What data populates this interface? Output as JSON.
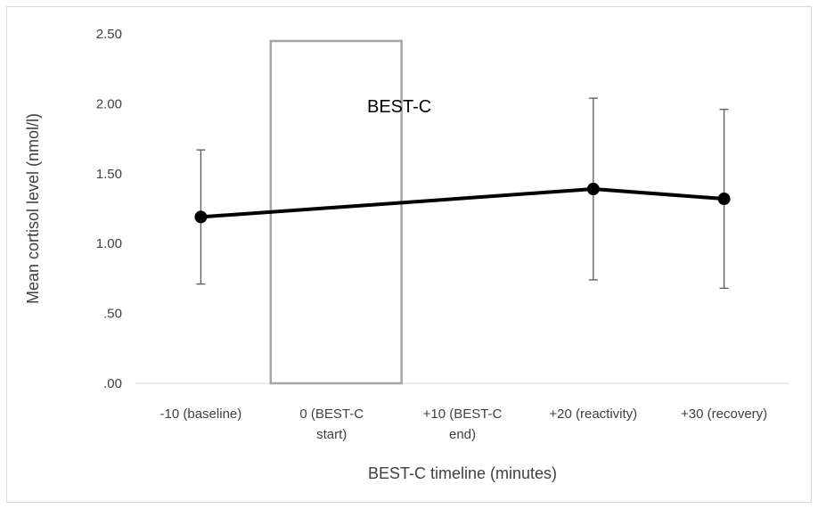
{
  "chart_data": {
    "type": "line",
    "title": "",
    "xlabel": "BEST-C timeline (minutes)",
    "ylabel": "Mean cortisol level (nmol/l)",
    "ylim": [
      0,
      2.5
    ],
    "yticks": [
      ".00",
      ".50",
      "1.00",
      "1.50",
      "2.00",
      "2.50"
    ],
    "categories": [
      [
        "-10 (baseline)"
      ],
      [
        "0 (BEST-C",
        "start)"
      ],
      [
        "+10 (BEST-C",
        "end)"
      ],
      [
        "+20 (reactivity)"
      ],
      [
        "+30 (recovery)"
      ]
    ],
    "series": [
      {
        "points": [
          {
            "x": 0,
            "y": 1.19,
            "err_low": 0.71,
            "err_high": 1.67,
            "marker": true
          },
          {
            "x": 3,
            "y": 1.39,
            "err_low": 0.74,
            "err_high": 2.04,
            "marker": true
          },
          {
            "x": 4,
            "y": 1.32,
            "err_low": 0.68,
            "err_high": 1.96,
            "marker": true
          }
        ],
        "color": "#000000"
      }
    ],
    "annotation": {
      "label": "BEST-C",
      "x_from": 1,
      "x_to": 2,
      "box_color": "#a6a6a6"
    },
    "grid": false,
    "legend": "none"
  }
}
